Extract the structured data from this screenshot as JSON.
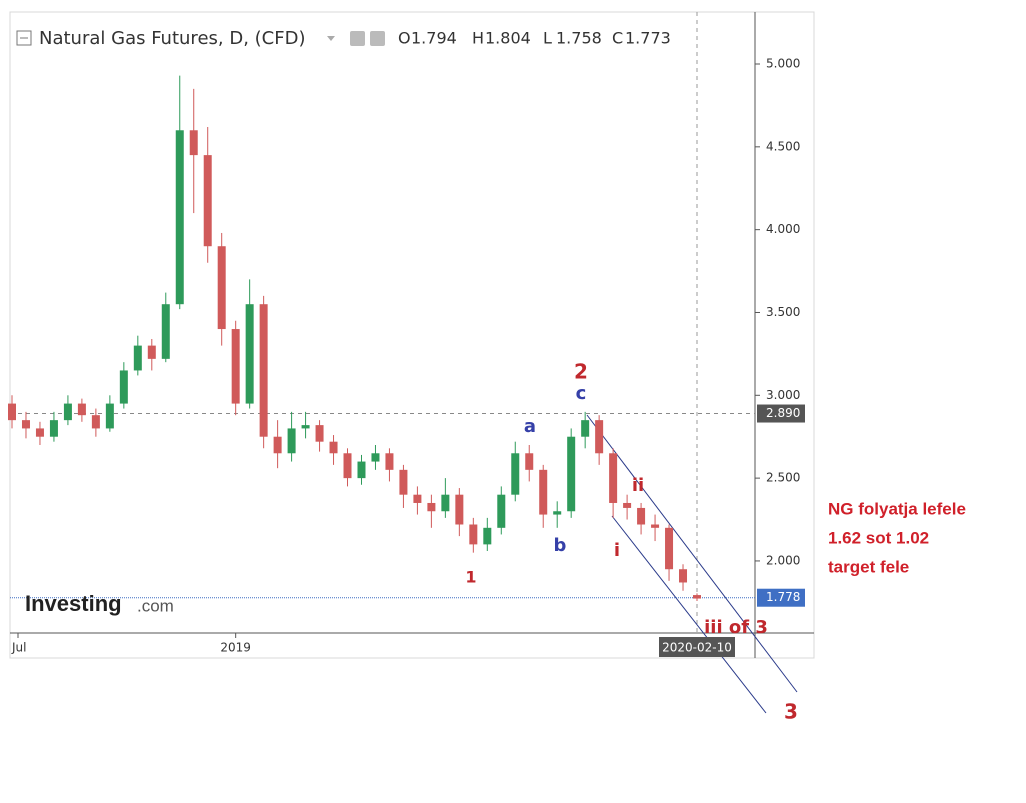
{
  "chart_data": {
    "type": "candlestick",
    "title": "Natural Gas Futures, D, (CFD)",
    "ohlc_letters": [
      "O",
      "H",
      "L",
      "C"
    ],
    "categories": [
      "Jul",
      null,
      null,
      null,
      null,
      null,
      null,
      null,
      null,
      null,
      null,
      null,
      null,
      null,
      null,
      null,
      "2019",
      null,
      null,
      null,
      null,
      null,
      null,
      null,
      null,
      null,
      null,
      null,
      null,
      null,
      null,
      null,
      null,
      null,
      null,
      null,
      null,
      null,
      null,
      null,
      null,
      null,
      null,
      null,
      null,
      null,
      null,
      null,
      null,
      "2020-02-10"
    ],
    "open": [
      2.95,
      2.85,
      2.8,
      2.75,
      2.85,
      2.95,
      2.88,
      2.8,
      2.95,
      3.15,
      3.3,
      3.22,
      3.55,
      4.6,
      4.45,
      3.9,
      3.4,
      2.95,
      3.55,
      2.75,
      2.65,
      2.8,
      2.82,
      2.72,
      2.65,
      2.5,
      2.6,
      2.65,
      2.55,
      2.4,
      2.35,
      2.3,
      2.4,
      2.22,
      2.1,
      2.2,
      2.4,
      2.65,
      2.55,
      2.28,
      2.3,
      2.75,
      2.85,
      2.65,
      2.35,
      2.32,
      2.22,
      2.2,
      1.95,
      1.794
    ],
    "high": [
      3.0,
      2.9,
      2.84,
      2.9,
      3.0,
      2.98,
      2.92,
      3.0,
      3.2,
      3.36,
      3.34,
      3.62,
      4.93,
      4.85,
      4.62,
      3.98,
      3.45,
      3.7,
      3.6,
      2.85,
      2.9,
      2.9,
      2.85,
      2.76,
      2.68,
      2.64,
      2.7,
      2.68,
      2.58,
      2.45,
      2.4,
      2.5,
      2.44,
      2.26,
      2.26,
      2.45,
      2.72,
      2.7,
      2.58,
      2.36,
      2.8,
      2.9,
      2.88,
      2.68,
      2.4,
      2.35,
      2.28,
      2.22,
      1.98,
      1.804
    ],
    "low": [
      2.8,
      2.74,
      2.7,
      2.72,
      2.82,
      2.84,
      2.75,
      2.78,
      2.92,
      3.12,
      3.15,
      3.2,
      3.52,
      4.1,
      3.8,
      3.3,
      2.88,
      2.92,
      2.68,
      2.56,
      2.6,
      2.74,
      2.66,
      2.58,
      2.45,
      2.46,
      2.55,
      2.48,
      2.32,
      2.28,
      2.2,
      2.26,
      2.15,
      2.05,
      2.06,
      2.16,
      2.36,
      2.48,
      2.2,
      2.2,
      2.26,
      2.68,
      2.58,
      2.26,
      2.25,
      2.16,
      2.12,
      1.88,
      1.82,
      1.758
    ],
    "close": [
      2.85,
      2.8,
      2.75,
      2.85,
      2.95,
      2.88,
      2.8,
      2.95,
      3.15,
      3.3,
      3.22,
      3.55,
      4.6,
      4.45,
      3.9,
      3.4,
      2.95,
      3.55,
      2.75,
      2.65,
      2.8,
      2.82,
      2.72,
      2.65,
      2.5,
      2.6,
      2.65,
      2.55,
      2.4,
      2.35,
      2.3,
      2.4,
      2.22,
      2.1,
      2.2,
      2.4,
      2.65,
      2.55,
      2.28,
      2.3,
      2.75,
      2.85,
      2.65,
      2.35,
      2.32,
      2.22,
      2.2,
      1.95,
      1.87,
      1.773
    ],
    "up_color": "#2e9a5a",
    "down_color": "#d05a5a",
    "ylim": [
      1.565,
      5.314
    ],
    "yticks": [
      {
        "value": 2,
        "label": "2.000"
      },
      {
        "value": 2.5,
        "label": "2.500"
      },
      {
        "value": 3,
        "label": "3.000"
      },
      {
        "value": 3.5,
        "label": "3.500"
      },
      {
        "value": 4,
        "label": "4.000"
      },
      {
        "value": 4.5,
        "label": "4.500"
      },
      {
        "value": 5,
        "label": "5.000"
      }
    ],
    "price_lines": [
      {
        "value": 2.89,
        "label": "2.890",
        "color": "#888888"
      },
      {
        "value": 1.778,
        "label": "1.778",
        "color": "#3f6fc4"
      }
    ],
    "wave_labels": [
      {
        "text": "1",
        "color": "#c0282d"
      },
      {
        "text": "2",
        "color": "#c0282d"
      },
      {
        "text": "a",
        "color": "#3540a8"
      },
      {
        "text": "b",
        "color": "#3540a8"
      },
      {
        "text": "c",
        "color": "#3540a8"
      },
      {
        "text": "i",
        "color": "#c0282d"
      },
      {
        "text": "ii",
        "color": "#c0282d"
      },
      {
        "text": "iii of 3",
        "color": "#c0282d"
      },
      {
        "text": "3",
        "color": "#c0282d"
      }
    ],
    "side_note": [
      "NG folyatja lefele",
      "1.62 sot 1.02",
      "target fele"
    ],
    "watermark": "Investing",
    "watermark_suffix": ".com"
  }
}
